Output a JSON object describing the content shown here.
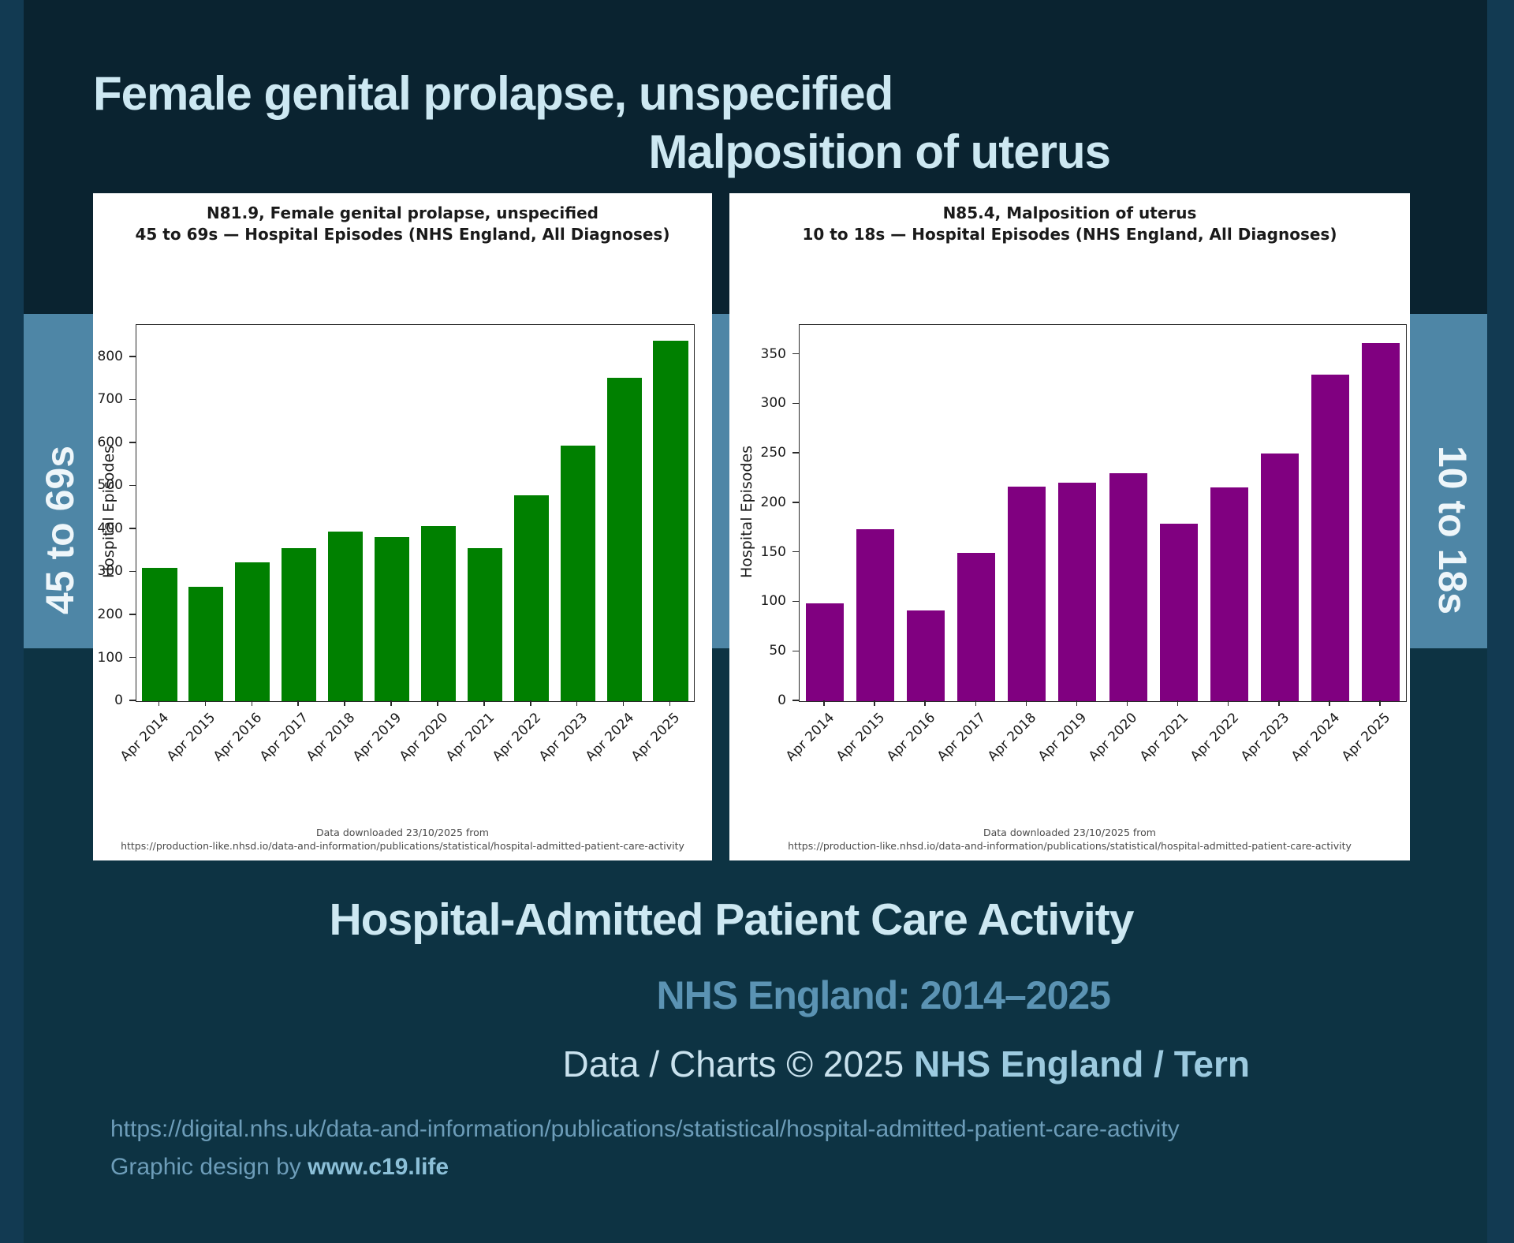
{
  "header": {
    "title_left": "Female genital prolapse, unspecified",
    "title_right": "Malposition of uterus"
  },
  "side_labels": {
    "left": "45 to 69s",
    "right": "10 to 18s"
  },
  "chart_data": [
    {
      "type": "bar",
      "title_line1": "N81.9, Female genital prolapse, unspecified",
      "title_line2": "45 to 69s — Hospital Episodes (NHS England, All Diagnoses)",
      "ylabel": "Hospital Episodes",
      "xlabel": "",
      "categories": [
        "Apr 2014",
        "Apr 2015",
        "Apr 2016",
        "Apr 2017",
        "Apr 2018",
        "Apr 2019",
        "Apr 2020",
        "Apr 2021",
        "Apr 2022",
        "Apr 2023",
        "Apr 2024",
        "Apr 2025"
      ],
      "values": [
        310,
        266,
        322,
        356,
        395,
        381,
        407,
        355,
        478,
        594,
        752,
        838
      ],
      "yticks": [
        0,
        100,
        200,
        300,
        400,
        500,
        600,
        700,
        800
      ],
      "ylim": [
        0,
        875
      ],
      "bar_color": "#008000",
      "grid": "off",
      "legend": "none",
      "source_line1": "Data downloaded 23/10/2025 from",
      "source_line2": "https://production-like.nhsd.io/data-and-information/publications/statistical/hospital-admitted-patient-care-activity"
    },
    {
      "type": "bar",
      "title_line1": "N85.4, Malposition of uterus",
      "title_line2": "10 to 18s — Hospital Episodes (NHS England, All Diagnoses)",
      "ylabel": "Hospital Episodes",
      "xlabel": "",
      "categories": [
        "Apr 2014",
        "Apr 2015",
        "Apr 2016",
        "Apr 2017",
        "Apr 2018",
        "Apr 2019",
        "Apr 2020",
        "Apr 2021",
        "Apr 2022",
        "Apr 2023",
        "Apr 2024",
        "Apr 2025"
      ],
      "values": [
        99,
        174,
        92,
        150,
        217,
        221,
        230,
        179,
        216,
        250,
        330,
        362
      ],
      "yticks": [
        0,
        50,
        100,
        150,
        200,
        250,
        300,
        350
      ],
      "ylim": [
        0,
        380
      ],
      "bar_color": "#800080",
      "grid": "off",
      "legend": "none",
      "source_line1": "Data downloaded 23/10/2025 from",
      "source_line2": "https://production-like.nhsd.io/data-and-information/publications/statistical/hospital-admitted-patient-care-activity"
    }
  ],
  "footer": {
    "heading": "Hospital-Admitted Patient Care Activity",
    "subheading": "NHS England: 2014–2025",
    "credit_prefix": "Data / Charts © 2025 ",
    "credit_bold1": "NHS England",
    "credit_sep": " / ",
    "credit_bold2": "Tern",
    "source_url": "https://digital.nhs.uk/data-and-information/publications/statistical/hospital-admitted-patient-care-activity",
    "design_prefix": "Graphic design by ",
    "design_site": "www.c19.life"
  },
  "colors": {
    "background": "#0d3343",
    "edge_strip": "#123a52",
    "header_panel": "#0a2330",
    "steel_band": "#4e86a6",
    "card": "#ffffff",
    "left_bars": "#008000",
    "right_bars": "#800080",
    "title_text": "#cde8f2",
    "sub_text": "#5b93b3"
  }
}
